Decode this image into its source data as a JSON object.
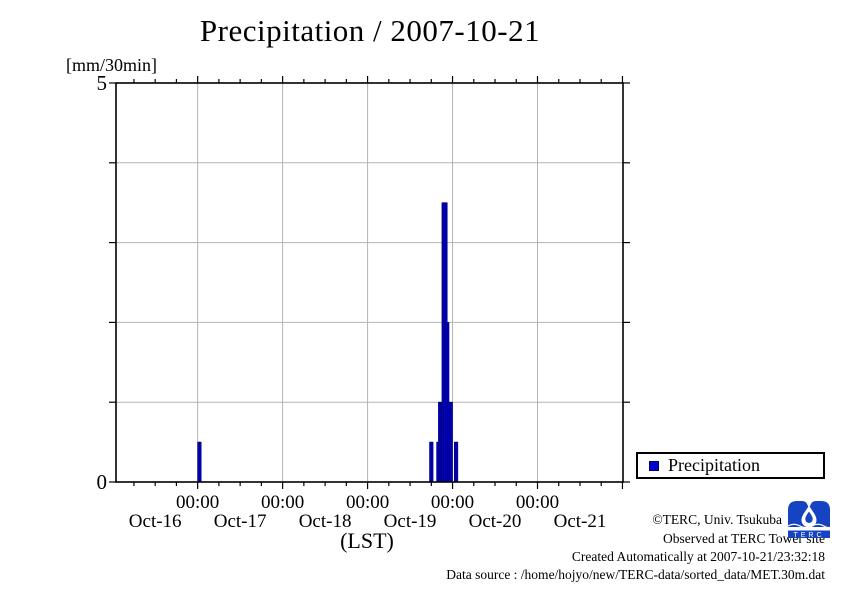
{
  "figure": {
    "title": "Precipitation / 2007-10-21",
    "y_unit_label": "[mm/30min]",
    "x_axis_label": "(LST)"
  },
  "chart_data": {
    "type": "bar",
    "title": "Precipitation / 2007-10-21",
    "ylabel": "[mm/30min]",
    "xlabel": "(LST)",
    "ylim": [
      0,
      5
    ],
    "y_gridline_values": [
      1,
      2,
      3,
      4
    ],
    "y_tick_labels": [
      {
        "value": 0,
        "label": "0"
      },
      {
        "value": 5,
        "label": "5"
      }
    ],
    "x_range_hours": [
      0,
      144
    ],
    "x_range_time": [
      "Oct-16 00:00",
      "Oct-22 00:00"
    ],
    "x_major_ticks": [
      {
        "t_hours": 24,
        "label": "00:00"
      },
      {
        "t_hours": 48,
        "label": "00:00"
      },
      {
        "t_hours": 72,
        "label": "00:00"
      },
      {
        "t_hours": 96,
        "label": "00:00"
      },
      {
        "t_hours": 120,
        "label": "00:00"
      }
    ],
    "x_day_labels": [
      {
        "t_hours": 12,
        "label": "Oct-16"
      },
      {
        "t_hours": 36,
        "label": "Oct-17"
      },
      {
        "t_hours": 60,
        "label": "Oct-18"
      },
      {
        "t_hours": 84,
        "label": "Oct-19"
      },
      {
        "t_hours": 108,
        "label": "Oct-20"
      },
      {
        "t_hours": 132,
        "label": "Oct-21"
      }
    ],
    "x_minor_tick_step_hours": 6,
    "grid_on": true,
    "grid_color": "#b3b3b3",
    "bar_color": "#0000cc",
    "bar_edge_color": "#000066",
    "bar_width_hours": 0.5,
    "legend": {
      "label": "Precipitation",
      "position": "outside-right-bottom"
    },
    "series": [
      {
        "name": "Precipitation",
        "unit": "mm/30min",
        "points": [
          {
            "time": "Oct-17 00:00",
            "t_hours": 24.0,
            "value": 0.5
          },
          {
            "time": "Oct-17 00:30",
            "t_hours": 24.5,
            "value": 0.5
          },
          {
            "time": "Oct-19 17:30",
            "t_hours": 89.5,
            "value": 0.5
          },
          {
            "time": "Oct-19 18:00",
            "t_hours": 90.0,
            "value": 0.5
          },
          {
            "time": "Oct-19 19:30",
            "t_hours": 91.5,
            "value": 0.5
          },
          {
            "time": "Oct-19 20:00",
            "t_hours": 92.0,
            "value": 1.0
          },
          {
            "time": "Oct-19 20:30",
            "t_hours": 92.5,
            "value": 1.0
          },
          {
            "time": "Oct-19 21:00",
            "t_hours": 93.0,
            "value": 3.5
          },
          {
            "time": "Oct-19 21:30",
            "t_hours": 93.5,
            "value": 3.5
          },
          {
            "time": "Oct-19 22:00",
            "t_hours": 94.0,
            "value": 3.5
          },
          {
            "time": "Oct-19 22:30",
            "t_hours": 94.5,
            "value": 2.0
          },
          {
            "time": "Oct-19 23:00",
            "t_hours": 95.0,
            "value": 1.0
          },
          {
            "time": "Oct-19 23:30",
            "t_hours": 95.5,
            "value": 1.0
          },
          {
            "time": "Oct-20 00:30",
            "t_hours": 96.5,
            "value": 0.5
          },
          {
            "time": "Oct-20 01:00",
            "t_hours": 97.0,
            "value": 0.5
          }
        ]
      }
    ]
  },
  "credits": {
    "line1": "©TERC, Univ. Tsukuba",
    "line2": "Observed at TERC Tower site",
    "line3": "Created Automatically at 2007-10-21/23:32:18",
    "line4": "Data source : /home/hojyo/new/TERC-data/sorted_data/MET.30m.dat"
  },
  "logo": {
    "text": "TERC",
    "color": "#1543c2"
  }
}
